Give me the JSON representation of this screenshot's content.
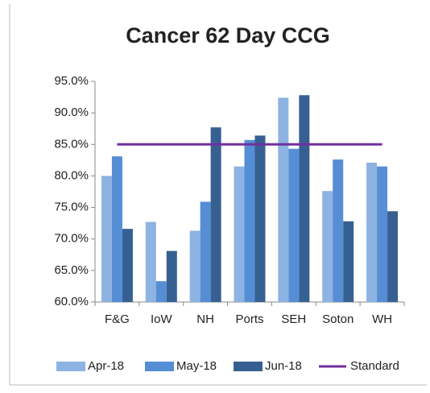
{
  "chart_data": {
    "type": "bar",
    "title": "Cancer 62 Day CCG",
    "categories": [
      "F&G",
      "IoW",
      "NH",
      "Ports",
      "SEH",
      "Soton",
      "WH"
    ],
    "series": [
      {
        "name": "Apr-18",
        "color": "#8db3e2",
        "values": [
          80.0,
          72.7,
          71.3,
          81.5,
          92.4,
          77.6,
          82.1
        ]
      },
      {
        "name": "May-18",
        "color": "#558ed5",
        "values": [
          83.1,
          63.3,
          75.9,
          85.7,
          84.3,
          82.6,
          81.5
        ]
      },
      {
        "name": "Jun-18",
        "color": "#376092",
        "values": [
          71.6,
          68.1,
          87.7,
          86.4,
          92.8,
          72.8,
          74.4
        ]
      },
      {
        "name": "Standard",
        "type": "line",
        "color": "#7030a0",
        "values": [
          85,
          85,
          85,
          85,
          85,
          85,
          85
        ]
      }
    ],
    "ylim": [
      60,
      95
    ],
    "yticks": [
      {
        "value": 60,
        "label": "60.0%"
      },
      {
        "value": 65,
        "label": "65.0%"
      },
      {
        "value": 70,
        "label": "70.0%"
      },
      {
        "value": 75,
        "label": "75.0%"
      },
      {
        "value": 80,
        "label": "80.0%"
      },
      {
        "value": 85,
        "label": "85.0%"
      },
      {
        "value": 90,
        "label": "90.0%"
      },
      {
        "value": 95,
        "label": "95.0%"
      }
    ],
    "grid": false,
    "legend": "bottom"
  }
}
